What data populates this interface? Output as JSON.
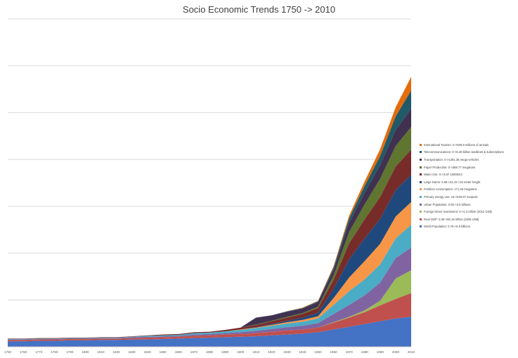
{
  "chart_data": {
    "type": "area",
    "title": "Socio Economic Trends 1750 -> 2010",
    "xlabel": "",
    "ylabel": "",
    "x": [
      1750,
      1760,
      1770,
      1780,
      1790,
      1800,
      1810,
      1820,
      1830,
      1840,
      1850,
      1860,
      1870,
      1880,
      1890,
      1900,
      1910,
      1920,
      1930,
      1940,
      1950,
      1960,
      1970,
      1980,
      1990,
      2000,
      2010
    ],
    "x_tick_labels": [
      "1750",
      "1760",
      "1770",
      "1780",
      "1790",
      "1800",
      "1810",
      "1820",
      "1830",
      "1840",
      "1850",
      "1860",
      "1870",
      "1880",
      "1890",
      "1900",
      "1910",
      "1920",
      "1930",
      "1940",
      "1950",
      "1960",
      "1970",
      "1980",
      "1990",
      "2000",
      "2010"
    ],
    "ylim": [
      0,
      7.2
    ],
    "y_gridlines": 7,
    "y_tick_labels_visible": false,
    "grid": true,
    "stacked": true,
    "legend_position": "right",
    "series": [
      {
        "name": "World Population: 0.75->6.9 billions",
        "color": "#4472c4",
        "values": [
          0.12,
          0.12,
          0.13,
          0.13,
          0.14,
          0.14,
          0.15,
          0.15,
          0.16,
          0.16,
          0.17,
          0.18,
          0.19,
          0.2,
          0.21,
          0.22,
          0.23,
          0.25,
          0.27,
          0.29,
          0.32,
          0.38,
          0.44,
          0.5,
          0.56,
          0.62,
          0.66
        ]
      },
      {
        "name": "Real GDP: 0.35->50.15 trillion (2005 US$)",
        "color": "#c0504d",
        "values": [
          0.03,
          0.03,
          0.03,
          0.03,
          0.03,
          0.03,
          0.03,
          0.03,
          0.03,
          0.04,
          0.04,
          0.04,
          0.05,
          0.05,
          0.06,
          0.06,
          0.07,
          0.08,
          0.09,
          0.09,
          0.1,
          0.15,
          0.2,
          0.26,
          0.35,
          0.43,
          0.52
        ]
      },
      {
        "name": "Foreign Direct Investment: 0->1.3 trillion (2012 US$)",
        "color": "#9bbb59",
        "values": [
          0,
          0,
          0,
          0,
          0,
          0,
          0,
          0,
          0,
          0,
          0,
          0,
          0,
          0,
          0,
          0,
          0,
          0,
          0,
          0,
          0,
          0.01,
          0.02,
          0.04,
          0.1,
          0.45,
          0.5
        ]
      },
      {
        "name": "Urban Population: 0.05->3.5 billions",
        "color": "#8064a2",
        "values": [
          0.01,
          0.01,
          0.01,
          0.01,
          0.01,
          0.01,
          0.01,
          0.01,
          0.02,
          0.02,
          0.02,
          0.02,
          0.03,
          0.03,
          0.03,
          0.04,
          0.05,
          0.06,
          0.07,
          0.08,
          0.1,
          0.18,
          0.26,
          0.33,
          0.4,
          0.45,
          0.5
        ]
      },
      {
        "name": "Primary energy use: 16->533.57 exajoule",
        "color": "#4bacc6",
        "values": [
          0.01,
          0.01,
          0.01,
          0.01,
          0.01,
          0.01,
          0.01,
          0.01,
          0.01,
          0.02,
          0.02,
          0.02,
          0.03,
          0.03,
          0.04,
          0.05,
          0.06,
          0.07,
          0.08,
          0.09,
          0.1,
          0.2,
          0.3,
          0.35,
          0.4,
          0.43,
          0.5
        ]
      },
      {
        "name": "Fertilizer consumption: 171.46 megatons",
        "color": "#f79646",
        "values": [
          0,
          0,
          0,
          0,
          0,
          0,
          0,
          0,
          0,
          0,
          0,
          0,
          0,
          0,
          0,
          0.01,
          0.01,
          0.02,
          0.03,
          0.04,
          0.05,
          0.15,
          0.3,
          0.4,
          0.45,
          0.48,
          0.5
        ]
      },
      {
        "name": "Large Dams: 0.86->31.43 >15 meter height",
        "color": "#1f497d",
        "values": [
          0,
          0,
          0,
          0,
          0,
          0,
          0,
          0,
          0,
          0,
          0,
          0,
          0,
          0,
          0,
          0,
          0.01,
          0.02,
          0.03,
          0.05,
          0.08,
          0.2,
          0.4,
          0.5,
          0.55,
          0.58,
          0.6
        ]
      },
      {
        "name": "Water Use: 0->3.87 1000km3",
        "color": "#772c2a",
        "values": [
          0.01,
          0.01,
          0.01,
          0.01,
          0.01,
          0.01,
          0.01,
          0.01,
          0.01,
          0.01,
          0.02,
          0.02,
          0.02,
          0.02,
          0.03,
          0.04,
          0.05,
          0.06,
          0.07,
          0.08,
          0.1,
          0.2,
          0.35,
          0.42,
          0.48,
          0.52,
          0.55
        ]
      },
      {
        "name": "Paper Production: 0->398.77 megatons",
        "color": "#5f7530",
        "values": [
          0,
          0,
          0,
          0,
          0,
          0,
          0,
          0,
          0,
          0,
          0,
          0,
          0,
          0,
          0,
          0,
          0.01,
          0.01,
          0.02,
          0.02,
          0.03,
          0.1,
          0.25,
          0.33,
          0.4,
          0.45,
          0.5
        ]
      },
      {
        "name": "Transportation: 0->1281.35 mega vehicles",
        "color": "#403151",
        "values": [
          0,
          0,
          0,
          0,
          0,
          0,
          0,
          0,
          0,
          0,
          0,
          0,
          0,
          0,
          0,
          0,
          0.15,
          0.12,
          0.11,
          0.1,
          0.1,
          0.12,
          0.2,
          0.25,
          0.3,
          0.35,
          0.4
        ]
      },
      {
        "name": "Telecommunications: 0->6.48 billion landlines & subscriptions",
        "color": "#215968",
        "values": [
          0,
          0,
          0,
          0,
          0,
          0,
          0,
          0,
          0,
          0,
          0,
          0,
          0,
          0,
          0,
          0,
          0,
          0,
          0.01,
          0.01,
          0.02,
          0.05,
          0.1,
          0.15,
          0.2,
          0.3,
          0.4
        ]
      },
      {
        "name": "International Tourism: 0->939.9 millions of arrivals",
        "color": "#e46c0a",
        "values": [
          0,
          0,
          0,
          0,
          0,
          0,
          0,
          0,
          0,
          0,
          0,
          0,
          0,
          0,
          0,
          0,
          0,
          0,
          0,
          0.01,
          0.01,
          0.03,
          0.06,
          0.1,
          0.15,
          0.2,
          0.3
        ]
      }
    ]
  }
}
